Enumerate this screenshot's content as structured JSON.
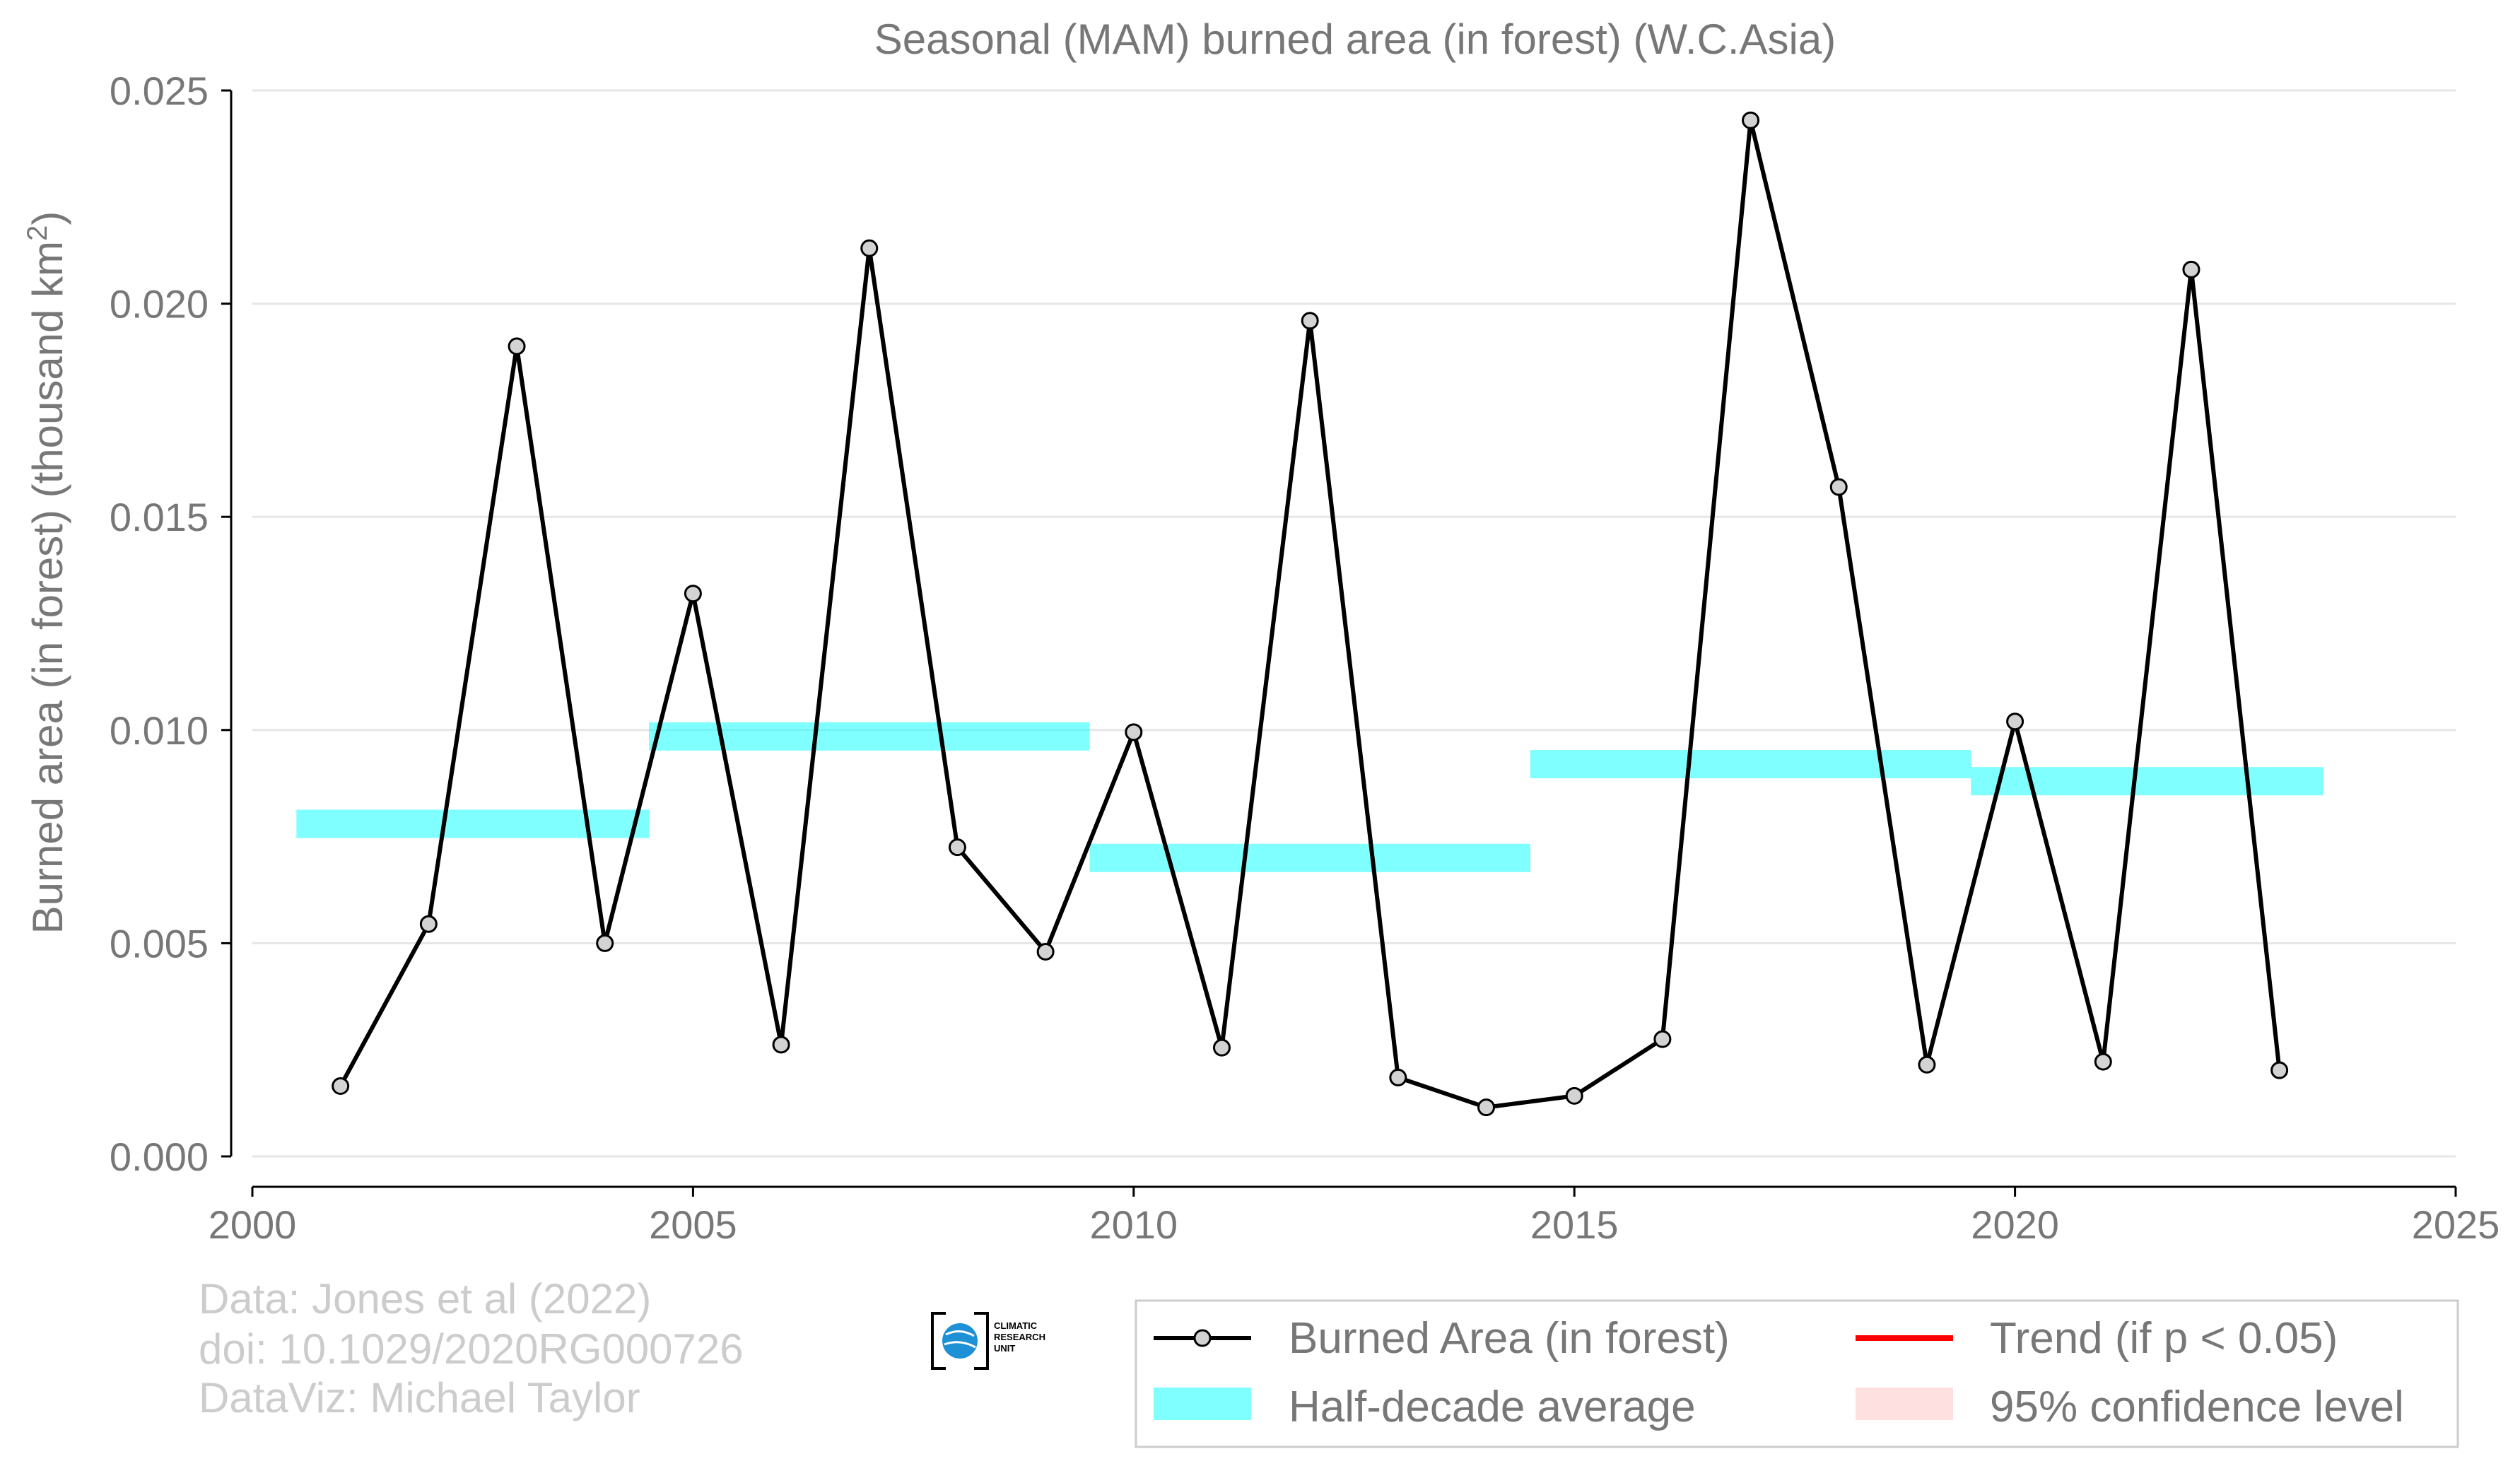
{
  "chart_data": {
    "type": "line",
    "title": "Seasonal (MAM) burned area (in forest) (W.C.Asia)",
    "ylabel_main": "Burned area (in forest) (thousand km",
    "ylabel_sup": "2",
    "ylabel_close": ")",
    "xlabel": "",
    "xlim": [
      2000,
      2025
    ],
    "ylim": [
      0,
      0.025
    ],
    "x_ticks": [
      "2000",
      "2005",
      "2010",
      "2015",
      "2020",
      "2025"
    ],
    "y_ticks": [
      "0.000",
      "0.005",
      "0.010",
      "0.015",
      "0.020",
      "0.025"
    ],
    "grid": "horizontal",
    "legend_position": "bottom-right",
    "series": [
      {
        "name": "Burned Area (in forest)",
        "color": "#000000",
        "marker_fill": "#d3d3d3",
        "x": [
          2001,
          2002,
          2003,
          2004,
          2005,
          2006,
          2007,
          2008,
          2009,
          2010,
          2011,
          2012,
          2013,
          2014,
          2015,
          2016,
          2017,
          2018,
          2019,
          2020,
          2021,
          2022,
          2023
        ],
        "values": [
          0.00165,
          0.00545,
          0.019,
          0.005,
          0.0132,
          0.00262,
          0.0213,
          0.00725,
          0.0048,
          0.00995,
          0.00255,
          0.0196,
          0.00185,
          0.00115,
          0.00142,
          0.00275,
          0.0243,
          0.0157,
          0.00215,
          0.0102,
          0.00222,
          0.0208,
          0.00202
        ]
      }
    ],
    "half_decade_averages": {
      "name": "Half-decade average",
      "color": "#00ffff",
      "segments": [
        {
          "x_start": 2000.5,
          "x_end": 2004.5,
          "value": 0.0078
        },
        {
          "x_start": 2004.5,
          "x_end": 2009.5,
          "value": 0.00985
        },
        {
          "x_start": 2009.5,
          "x_end": 2014.5,
          "value": 0.007
        },
        {
          "x_start": 2014.5,
          "x_end": 2019.5,
          "value": 0.0092
        },
        {
          "x_start": 2019.5,
          "x_end": 2023.5,
          "value": 0.0088
        }
      ]
    },
    "legend": [
      {
        "label": "Burned Area (in forest)",
        "kind": "line-marker",
        "color": "#000000"
      },
      {
        "label": "Trend (if p < 0.05)",
        "kind": "line",
        "color": "#ff0000"
      },
      {
        "label": "Half-decade average",
        "kind": "band",
        "color": "#00ffff"
      },
      {
        "label": "95% confidence level",
        "kind": "band",
        "color": "#ffcccc"
      }
    ]
  },
  "credits": {
    "line1": "Data: Jones et al (2022)",
    "line2": "doi: 10.1029/2020RG000726",
    "line3": "DataViz: Michael Taylor"
  },
  "logo": {
    "line1": "CLIMATIC",
    "line2": "RESEARCH",
    "line3": "UNIT"
  }
}
